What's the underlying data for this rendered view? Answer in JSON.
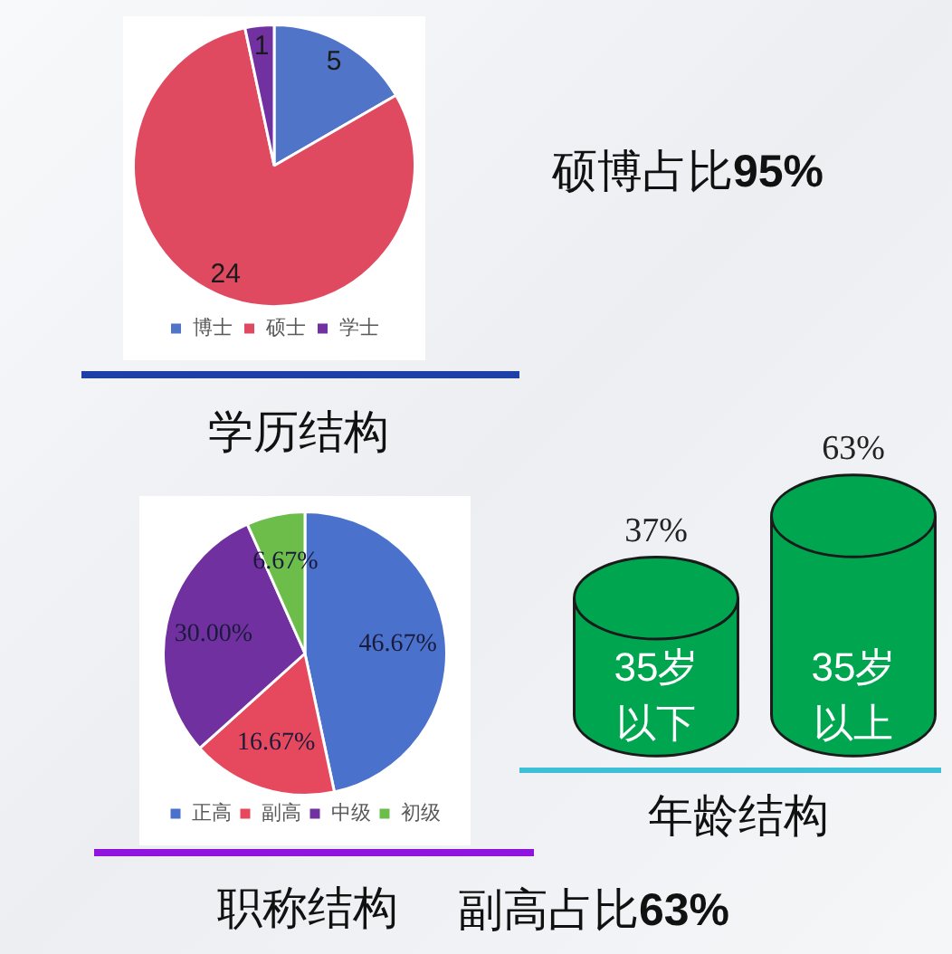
{
  "chart_data": [
    {
      "type": "pie",
      "title": "学历结构",
      "annotations": [
        "硕博占比95%"
      ],
      "categories": [
        "博士",
        "硕士",
        "学士"
      ],
      "values": [
        5,
        24,
        1
      ],
      "colors": [
        "#4f74c8",
        "#e04a61",
        "#7131a0"
      ],
      "data_labels": true,
      "legend": "bottom"
    },
    {
      "type": "pie",
      "title": "职称结构",
      "annotations": [
        "副高占比63%"
      ],
      "categories": [
        "正高",
        "副高",
        "中级",
        "初级"
      ],
      "values": [
        46.67,
        16.67,
        30,
        6.67
      ],
      "value_labels": [
        "46.67%",
        "16.67%",
        "30.00%",
        "6.67%"
      ],
      "colors": [
        "#4a71cb",
        "#e6485e",
        "#7030a0",
        "#6cbd4a"
      ],
      "legend": "bottom"
    },
    {
      "type": "other",
      "title": "年龄结构",
      "categories": [
        "35岁以下",
        "35岁以上"
      ],
      "values": [
        37,
        63
      ],
      "value_labels": [
        "37%",
        "63%"
      ],
      "color": "#00a64f"
    }
  ]
}
